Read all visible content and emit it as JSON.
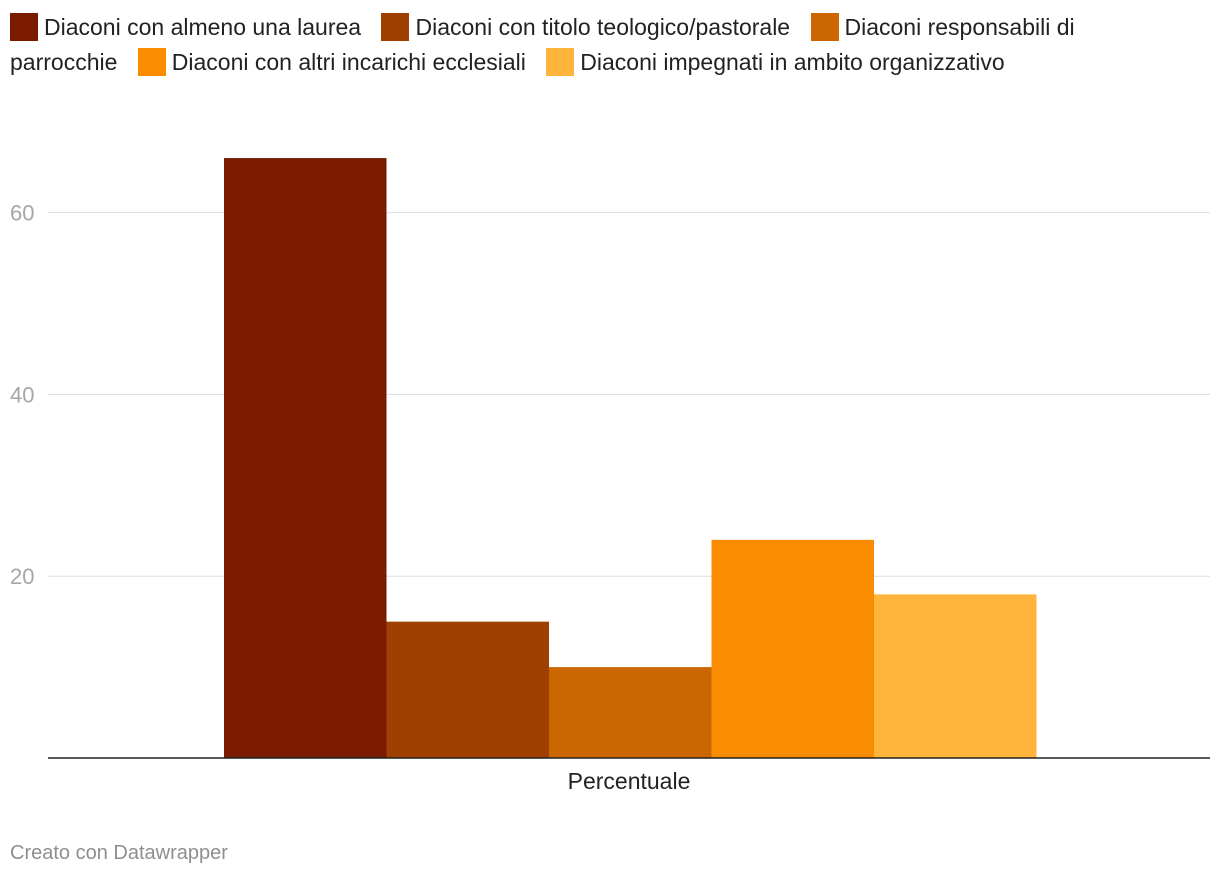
{
  "chart_data": {
    "type": "bar",
    "categories": [
      "Percentuale"
    ],
    "series": [
      {
        "name": "Diaconi con almeno una laurea",
        "values": [
          66
        ],
        "color": "#7a1b00"
      },
      {
        "name": "Diaconi con titolo teologico/pastorale",
        "values": [
          15
        ],
        "color": "#a04000"
      },
      {
        "name": "Diaconi responsabili di parrocchie",
        "values": [
          10
        ],
        "color": "#cc6600"
      },
      {
        "name": "Diaconi con altri incarichi ecclesiali",
        "values": [
          24
        ],
        "color": "#f98c00"
      },
      {
        "name": "Diaconi impegnati in ambito organizzativo",
        "values": [
          18
        ],
        "color": "#ffb43c"
      }
    ],
    "yticks": [
      "20",
      "40",
      "60"
    ],
    "ylim": [
      0,
      70
    ],
    "grid": true,
    "legend": "top",
    "xlabel": "",
    "ylabel": ""
  },
  "footer": {
    "credit": "Creato con Datawrapper"
  }
}
